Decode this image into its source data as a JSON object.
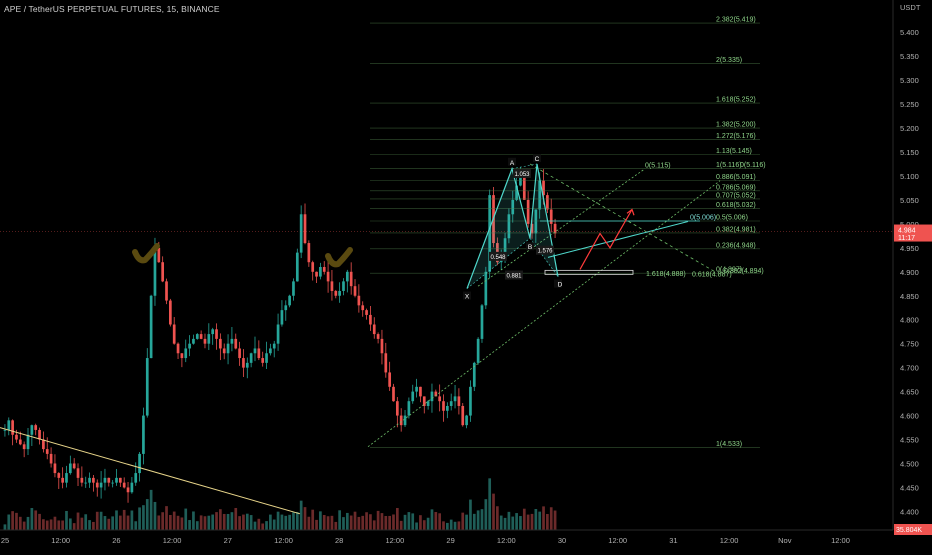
{
  "header": {
    "symbol_line": "APE / TetherUS PERPETUAL FUTURES, 15, BINANCE"
  },
  "colors": {
    "background": "#000000",
    "candle_up": "#26a69a",
    "candle_down": "#ef5350",
    "fib_green": "#8fd68a",
    "pattern_cyan": "#4fd8cc",
    "projection_red": "#ff3b3b",
    "trendline_yellow": "#e8d58a",
    "checkmark": "#5a4a10",
    "price_badge": "#ef5350",
    "axis_text": "#b2b2b2"
  },
  "chart_data": {
    "type": "candlestick",
    "price_axis": {
      "unit_label": "USDT",
      "range": [
        4.38,
        5.44
      ],
      "ticks": [
        "5.400",
        "5.350",
        "5.300",
        "5.250",
        "5.200",
        "5.150",
        "5.100",
        "5.050",
        "5.000",
        "4.950",
        "4.900",
        "4.850",
        "4.800",
        "4.750",
        "4.700",
        "4.650",
        "4.600",
        "4.550",
        "4.500",
        "4.450",
        "4.400"
      ],
      "current_price": "4.984",
      "countdown": "11:17",
      "volume_badge": "35.804K"
    },
    "time_axis": {
      "ticks": [
        "25",
        "12:00",
        "26",
        "12:00",
        "27",
        "12:00",
        "28",
        "12:00",
        "29",
        "12:00",
        "30",
        "12:00",
        "31",
        "12:00",
        "Nov",
        "12:00"
      ]
    },
    "candles_close": [
      4.57,
      4.59,
      4.56,
      4.55,
      4.54,
      4.53,
      4.56,
      4.58,
      4.57,
      4.55,
      4.53,
      4.52,
      4.5,
      4.48,
      4.47,
      4.46,
      4.48,
      4.5,
      4.49,
      4.47,
      4.46,
      4.46,
      4.47,
      4.46,
      4.45,
      4.46,
      4.47,
      4.46,
      4.46,
      4.47,
      4.46,
      4.45,
      4.44,
      4.46,
      4.48,
      4.52,
      4.6,
      4.72,
      4.85,
      4.95,
      4.92,
      4.88,
      4.84,
      4.79,
      4.75,
      4.73,
      4.72,
      4.74,
      4.75,
      4.76,
      4.77,
      4.76,
      4.75,
      4.77,
      4.78,
      4.76,
      4.74,
      4.73,
      4.75,
      4.76,
      4.74,
      4.72,
      4.7,
      4.71,
      4.73,
      4.74,
      4.72,
      4.71,
      4.73,
      4.74,
      4.75,
      4.79,
      4.82,
      4.83,
      4.85,
      4.88,
      4.94,
      5.02,
      4.96,
      4.92,
      4.9,
      4.89,
      4.91,
      4.9,
      4.88,
      4.86,
      4.85,
      4.86,
      4.88,
      4.9,
      4.87,
      4.85,
      4.83,
      4.82,
      4.81,
      4.79,
      4.77,
      4.76,
      4.73,
      4.69,
      4.66,
      4.63,
      4.6,
      4.58,
      4.6,
      4.63,
      4.65,
      4.66,
      4.64,
      4.62,
      4.63,
      4.65,
      4.64,
      4.63,
      4.61,
      4.62,
      4.63,
      4.64,
      4.62,
      4.58,
      4.6,
      4.66,
      4.71,
      4.76,
      4.83,
      4.9,
      5.06,
      4.96,
      4.92,
      4.94,
      4.97,
      5.02,
      5.05,
      5.08,
      5.1,
      5.05,
      5.0,
      4.98,
      5.03,
      5.09,
      5.06,
      5.03,
      5.0,
      4.98
    ],
    "volume_note": "volume histogram bars at bottom",
    "fib_levels": [
      {
        "label": "2.382(5.419)",
        "price": 5.419
      },
      {
        "label": "2(5.335)",
        "price": 5.335
      },
      {
        "label": "1.618(5.252)",
        "price": 5.252
      },
      {
        "label": "1.382(5.200)",
        "price": 5.2
      },
      {
        "label": "1.272(5.176)",
        "price": 5.176
      },
      {
        "label": "1.13(5.145)",
        "price": 5.145
      },
      {
        "label": "1(5.116)",
        "price": 5.116
      },
      {
        "label": "0.886(5.091)",
        "price": 5.091
      },
      {
        "label": "0.786(5.069)",
        "price": 5.069
      },
      {
        "label": "0.707(5.052)",
        "price": 5.052
      },
      {
        "label": "0.618(5.032)",
        "price": 5.032
      },
      {
        "label": "0.5(5.006)",
        "price": 5.006
      },
      {
        "label": "0.382(4.981)",
        "price": 4.981
      },
      {
        "label": "0.236(4.948)",
        "price": 4.948
      },
      {
        "label": "0(4.897)",
        "price": 4.897
      },
      {
        "label": "1(4.533)",
        "price": 4.533
      }
    ],
    "extra_labels": [
      {
        "label": "0(5.115)",
        "price": 5.115
      },
      {
        "label": "0(5.116)",
        "price": 5.116
      },
      {
        "label": "0(5.006)",
        "price": 5.006
      },
      {
        "label": "0.382(4.894)",
        "price": 4.894
      },
      {
        "label": "0.618(4.887)",
        "price": 4.887
      },
      {
        "label": "1.618(4.888)",
        "price": 4.888
      }
    ],
    "pattern_points": [
      {
        "name": "X",
        "price": 4.865
      },
      {
        "name": "A",
        "price": 5.115
      },
      {
        "name": "B",
        "price": 4.97
      },
      {
        "name": "C",
        "price": 5.125
      },
      {
        "name": "D",
        "price": 4.89
      }
    ],
    "pattern_ratios": [
      "1.053",
      "0.548",
      "1.576",
      "0.881"
    ]
  }
}
